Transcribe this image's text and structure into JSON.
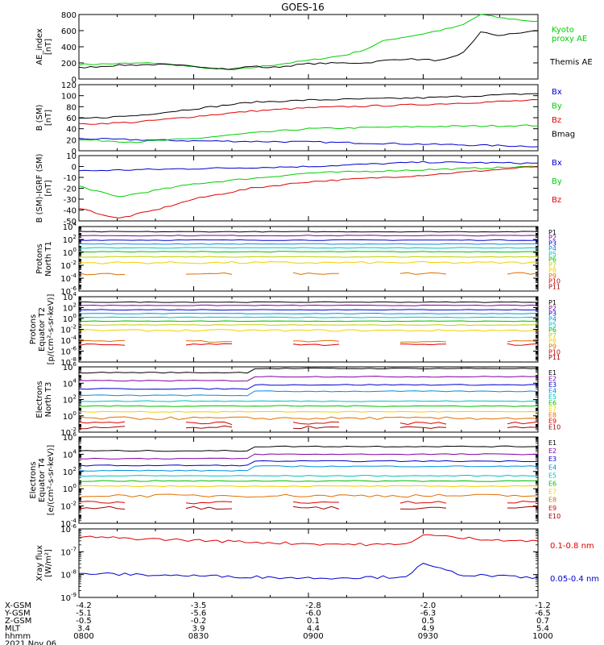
{
  "title": "GOES-16",
  "colors": {
    "black": "#000000",
    "green": "#00d000",
    "red": "#e00000",
    "blue": "#0000d0",
    "orange": "#e07000",
    "darkred": "#a00000"
  },
  "chart_data": [
    {
      "type": "line",
      "panel": "ae",
      "ylabel": "AE_index\n[nT]",
      "ylim": [
        0,
        800
      ],
      "yticks": [
        {
          "v": 0,
          "l": "0"
        },
        {
          "v": 200,
          "l": "200"
        },
        {
          "v": 400,
          "l": "400"
        },
        {
          "v": 600,
          "l": "600"
        },
        {
          "v": 800,
          "l": "800"
        }
      ],
      "series": [
        {
          "name": "Kyoto\nproxy AE",
          "color": "#00d000",
          "x": [
            "08:00",
            "08:10",
            "08:20",
            "08:30",
            "08:40",
            "08:45",
            "08:50",
            "09:00",
            "09:10",
            "09:15",
            "09:20",
            "09:30",
            "09:40",
            "09:45",
            "09:50",
            "10:00"
          ],
          "values": [
            180,
            190,
            200,
            150,
            110,
            140,
            170,
            230,
            300,
            370,
            480,
            560,
            660,
            800,
            760,
            710
          ]
        },
        {
          "name": "Themis AE",
          "color": "#000000",
          "x": [
            "08:00",
            "08:10",
            "08:20",
            "08:30",
            "08:40",
            "08:45",
            "08:50",
            "09:00",
            "09:10",
            "09:15",
            "09:20",
            "09:25",
            "09:30",
            "09:35",
            "09:40",
            "09:45",
            "09:50",
            "10:00"
          ],
          "values": [
            140,
            170,
            180,
            160,
            120,
            160,
            140,
            190,
            200,
            200,
            230,
            250,
            240,
            230,
            300,
            580,
            540,
            600
          ]
        }
      ]
    },
    {
      "type": "line",
      "panel": "b-sm",
      "ylabel": "B (SM)\n[nT]",
      "ylim": [
        0,
        120
      ],
      "yticks": [
        {
          "v": 0,
          "l": "0"
        },
        {
          "v": 20,
          "l": "20"
        },
        {
          "v": 40,
          "l": "40"
        },
        {
          "v": 60,
          "l": "60"
        },
        {
          "v": 80,
          "l": "80"
        },
        {
          "v": 100,
          "l": "100"
        },
        {
          "v": 120,
          "l": "120"
        }
      ],
      "series": [
        {
          "name": "Bx",
          "color": "#0000d0",
          "x": [
            "08:00",
            "08:30",
            "09:00",
            "09:30",
            "10:00"
          ],
          "values": [
            22,
            18,
            16,
            12,
            8
          ]
        },
        {
          "name": "By",
          "color": "#00d000",
          "x": [
            "08:00",
            "08:15",
            "08:30",
            "08:45",
            "09:00",
            "09:30",
            "10:00"
          ],
          "values": [
            20,
            16,
            22,
            32,
            40,
            44,
            46
          ]
        },
        {
          "name": "Bz",
          "color": "#e00000",
          "x": [
            "08:00",
            "08:15",
            "08:30",
            "08:45",
            "09:00",
            "09:30",
            "10:00"
          ],
          "values": [
            48,
            52,
            62,
            72,
            78,
            84,
            92
          ]
        },
        {
          "name": "Bmag",
          "color": "#000000",
          "x": [
            "08:00",
            "08:15",
            "08:30",
            "08:45",
            "09:00",
            "09:30",
            "10:00"
          ],
          "values": [
            58,
            64,
            76,
            88,
            92,
            96,
            104
          ]
        }
      ]
    },
    {
      "type": "line",
      "panel": "b-igrf",
      "ylabel": "B (SM)-IGRF (SM)\n[nT]",
      "ylim": [
        -50,
        10
      ],
      "yticks": [
        {
          "v": -50,
          "l": "-50"
        },
        {
          "v": -40,
          "l": "-40"
        },
        {
          "v": -30,
          "l": "-30"
        },
        {
          "v": -20,
          "l": "-20"
        },
        {
          "v": -10,
          "l": "-10"
        },
        {
          "v": 0,
          "l": "0"
        },
        {
          "v": 10,
          "l": "10"
        }
      ],
      "series": [
        {
          "name": "Bx",
          "color": "#0000d0",
          "x": [
            "08:00",
            "08:30",
            "09:00",
            "09:30",
            "10:00"
          ],
          "values": [
            -4,
            -2,
            0,
            4,
            3
          ]
        },
        {
          "name": "By",
          "color": "#00d000",
          "x": [
            "08:00",
            "08:10",
            "08:30",
            "09:00",
            "09:30",
            "10:00"
          ],
          "values": [
            -18,
            -28,
            -16,
            -6,
            -3,
            0
          ]
        },
        {
          "name": "Bz",
          "color": "#e00000",
          "x": [
            "08:00",
            "08:10",
            "08:20",
            "08:30",
            "08:45",
            "09:00",
            "09:30",
            "10:00"
          ],
          "values": [
            -38,
            -48,
            -40,
            -30,
            -20,
            -14,
            -8,
            0
          ]
        }
      ]
    },
    {
      "type": "line",
      "panel": "protons-t1",
      "scale": "log",
      "ylabel": "Protons\nNorth T1",
      "ylim": [
        -6,
        4
      ],
      "yticks": [
        {
          "v": -6,
          "l": "10-6"
        },
        {
          "v": -4,
          "l": "10-4"
        },
        {
          "v": -2,
          "l": "10-2"
        },
        {
          "v": 0,
          "l": "100"
        },
        {
          "v": 2,
          "l": "102"
        },
        {
          "v": 4,
          "l": "104"
        }
      ],
      "channels": [
        {
          "name": "P1",
          "color": "#000000",
          "level": 3.2
        },
        {
          "name": "P2",
          "color": "#8000a0",
          "level": 2.6
        },
        {
          "name": "P3",
          "color": "#0000d0",
          "level": 1.9
        },
        {
          "name": "P4",
          "color": "#0090e0",
          "level": 1.3
        },
        {
          "name": "P5",
          "color": "#00c0c0",
          "level": 0.7
        },
        {
          "name": "P6",
          "color": "#00c000",
          "level": 0.1
        },
        {
          "name": "P7",
          "color": "#c0d000",
          "level": -0.7
        },
        {
          "name": "P8",
          "color": "#f0d000",
          "level": -1.6
        },
        {
          "name": "P9",
          "color": "#e07000",
          "level": -3.3
        }
      ],
      "labels_only": [
        {
          "name": "P10",
          "color": "#e00000"
        },
        {
          "name": "P11",
          "color": "#a00000"
        }
      ]
    },
    {
      "type": "line",
      "panel": "protons-t2",
      "scale": "log",
      "ylabel": "Protons\nEquator T2\n[p/(cm²-s-sr-keV)]",
      "ylim": [
        -8,
        4
      ],
      "yticks": [
        {
          "v": -8,
          "l": "10-8"
        },
        {
          "v": -6,
          "l": "10-6"
        },
        {
          "v": -4,
          "l": "10-4"
        },
        {
          "v": -2,
          "l": "10-2"
        },
        {
          "v": 0,
          "l": "100"
        },
        {
          "v": 2,
          "l": "102"
        },
        {
          "v": 4,
          "l": "104"
        }
      ],
      "channels": [
        {
          "name": "P1",
          "color": "#000000",
          "level": 3.0
        },
        {
          "name": "P2",
          "color": "#8000a0",
          "level": 2.4
        },
        {
          "name": "P3",
          "color": "#0000d0",
          "level": 1.6
        },
        {
          "name": "P4",
          "color": "#0090e0",
          "level": 0.9
        },
        {
          "name": "P5",
          "color": "#00c0c0",
          "level": 0.2
        },
        {
          "name": "P6",
          "color": "#00c000",
          "level": -0.5
        },
        {
          "name": "P7",
          "color": "#c0d000",
          "level": -1.2
        },
        {
          "name": "P8",
          "color": "#f0d000",
          "level": -2.2
        },
        {
          "name": "P9",
          "color": "#e07000",
          "level": -4.2
        },
        {
          "name": "P10",
          "color": "#e00000",
          "level": -4.8
        }
      ],
      "labels_only": [
        {
          "name": "P11",
          "color": "#a00000"
        }
      ]
    },
    {
      "type": "line",
      "panel": "electrons-t3",
      "scale": "log",
      "ylabel": "Electrons\nNorth T3",
      "ylim": [
        -2,
        6
      ],
      "yticks": [
        {
          "v": -2,
          "l": "10-2"
        },
        {
          "v": 0,
          "l": "100"
        },
        {
          "v": 2,
          "l": "102"
        },
        {
          "v": 4,
          "l": "104"
        },
        {
          "v": 6,
          "l": "106"
        }
      ],
      "channels": [
        {
          "name": "E1",
          "color": "#000000",
          "level": 5.3
        },
        {
          "name": "E2",
          "color": "#8000a0",
          "level": 4.3
        },
        {
          "name": "E3",
          "color": "#0000d0",
          "level": 3.3
        },
        {
          "name": "E4",
          "color": "#0090e0",
          "level": 2.5
        },
        {
          "name": "E5",
          "color": "#00c0c0",
          "level": 1.8
        },
        {
          "name": "E6",
          "color": "#00c000",
          "level": 1.2
        },
        {
          "name": "E7",
          "color": "#f0d000",
          "level": 0.5
        },
        {
          "name": "E8",
          "color": "#e07000",
          "level": -0.3
        },
        {
          "name": "E9",
          "color": "#e00000",
          "level": -0.9
        },
        {
          "name": "E10",
          "color": "#a00000",
          "level": -1.4
        }
      ]
    },
    {
      "type": "line",
      "panel": "electrons-t4",
      "scale": "log",
      "ylabel": "Electrons\nEquator T4\n[e/(cm²-s-sr-keV)]",
      "ylim": [
        -4,
        6
      ],
      "yticks": [
        {
          "v": -4,
          "l": "10-4"
        },
        {
          "v": -2,
          "l": "10-2"
        },
        {
          "v": 0,
          "l": "100"
        },
        {
          "v": 2,
          "l": "102"
        },
        {
          "v": 4,
          "l": "104"
        },
        {
          "v": 6,
          "l": "106"
        }
      ],
      "channels": [
        {
          "name": "E1",
          "color": "#000000",
          "level": 4.4
        },
        {
          "name": "E2",
          "color": "#8000a0",
          "level": 3.5
        },
        {
          "name": "E3",
          "color": "#0000d0",
          "level": 2.7
        },
        {
          "name": "E4",
          "color": "#0090e0",
          "level": 2.1
        },
        {
          "name": "E5",
          "color": "#00c0c0",
          "level": 1.5
        },
        {
          "name": "E6",
          "color": "#00c000",
          "level": 0.9
        },
        {
          "name": "E7",
          "color": "#f0d000",
          "level": 0.3
        },
        {
          "name": "E8",
          "color": "#e07000",
          "level": -0.8
        },
        {
          "name": "E9",
          "color": "#e00000",
          "level": -1.6
        },
        {
          "name": "E10",
          "color": "#a00000",
          "level": -2.2
        }
      ]
    },
    {
      "type": "line",
      "panel": "xray",
      "scale": "log",
      "ylabel": "Xray flux\n[W/m²]",
      "ylim": [
        -9,
        -6
      ],
      "yticks": [
        {
          "v": -9,
          "l": "10-9"
        },
        {
          "v": -8,
          "l": "10-8"
        },
        {
          "v": -7,
          "l": "10-7"
        },
        {
          "v": -6,
          "l": "10-6"
        }
      ],
      "series": [
        {
          "name": "0.1-0.8 nm",
          "color": "#e00000",
          "x": [
            "08:00",
            "08:30",
            "09:00",
            "09:25",
            "09:30",
            "09:40",
            "10:00"
          ],
          "values": [
            -6.35,
            -6.5,
            -6.65,
            -6.7,
            -6.25,
            -6.4,
            -6.55
          ]
        },
        {
          "name": "0.05-0.4 nm",
          "color": "#0000d0",
          "x": [
            "08:00",
            "08:30",
            "09:00",
            "09:25",
            "09:30",
            "09:40",
            "10:00"
          ],
          "values": [
            -7.95,
            -8.05,
            -8.15,
            -8.1,
            -7.55,
            -8.0,
            -8.15
          ]
        }
      ]
    }
  ],
  "axis_footer": {
    "rows": [
      {
        "label": "X-GSM",
        "values": [
          "-4.2",
          "-3.5",
          "-2.8",
          "-2.0",
          "-1.2"
        ]
      },
      {
        "label": "Y-GSM",
        "values": [
          "-5.1",
          "-5.6",
          "-6.0",
          "-6.3",
          "-6.5"
        ]
      },
      {
        "label": "Z-GSM",
        "values": [
          "-0.5",
          "-0.2",
          "0.1",
          "0.5",
          "0.7"
        ]
      },
      {
        "label": "MLT",
        "values": [
          "3.4",
          "3.9",
          "4.4",
          "4.9",
          "5.4"
        ]
      },
      {
        "label": "hhmm",
        "values": [
          "0800",
          "0830",
          "0900",
          "0930",
          "1000"
        ]
      }
    ],
    "date": "2021 Nov 06"
  }
}
